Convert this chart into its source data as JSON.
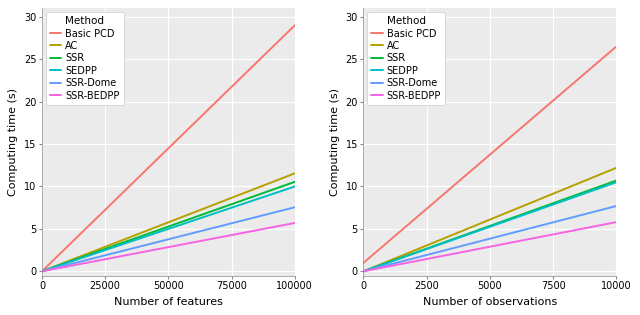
{
  "plot1": {
    "xlabel": "Number of features",
    "ylabel": "Computing time (s)",
    "xlim": [
      0,
      100000
    ],
    "ylim": [
      -0.5,
      31
    ],
    "yticks": [
      0,
      5,
      10,
      15,
      20,
      25,
      30
    ],
    "xticks": [
      0,
      25000,
      50000,
      75000,
      100000
    ],
    "xtick_labels": [
      "0",
      "25000",
      "50000",
      "75000",
      "100000"
    ],
    "series": [
      {
        "name": "Basic PCD",
        "color": "#F8766D",
        "slope": 0.00029,
        "intercept": 0.0
      },
      {
        "name": "AC",
        "color": "#B5A000",
        "slope": 0.0001155,
        "intercept": 0.0
      },
      {
        "name": "SSR",
        "color": "#00BA38",
        "slope": 0.0001055,
        "intercept": 0.0
      },
      {
        "name": "SEDPP",
        "color": "#00BFC4",
        "slope": 0.0001,
        "intercept": 0.0
      },
      {
        "name": "SSR-Dome",
        "color": "#619CFF",
        "slope": 7.55e-05,
        "intercept": 0.0
      },
      {
        "name": "SSR-BEDPP",
        "color": "#F564E3",
        "slope": 5.7e-05,
        "intercept": 0.0
      }
    ]
  },
  "plot2": {
    "xlabel": "Number of observations",
    "ylabel": "Computing time (s)",
    "xlim": [
      0,
      10000
    ],
    "ylim": [
      -0.5,
      31
    ],
    "yticks": [
      0,
      5,
      10,
      15,
      20,
      25,
      30
    ],
    "xticks": [
      0,
      2500,
      5000,
      7500,
      10000
    ],
    "xtick_labels": [
      "0",
      "2500",
      "5000",
      "7500",
      "10000"
    ],
    "series": [
      {
        "name": "Basic PCD",
        "color": "#F8766D",
        "slope": 0.00255,
        "intercept": 1.0
      },
      {
        "name": "AC",
        "color": "#B5A000",
        "slope": 0.00122,
        "intercept": 0.0
      },
      {
        "name": "SSR",
        "color": "#00BA38",
        "slope": 0.00107,
        "intercept": 0.0
      },
      {
        "name": "SEDPP",
        "color": "#00BFC4",
        "slope": 0.00105,
        "intercept": 0.0
      },
      {
        "name": "SSR-Dome",
        "color": "#619CFF",
        "slope": 0.00077,
        "intercept": 0.0
      },
      {
        "name": "SSR-BEDPP",
        "color": "#F564E3",
        "slope": 0.00058,
        "intercept": 0.0
      }
    ]
  },
  "legend_title": "Method",
  "panel_bg": "#EBEBEB",
  "grid_color": "white",
  "linewidth": 1.4,
  "legend_fontsize": 7.0,
  "legend_title_fontsize": 7.5,
  "axis_label_fontsize": 8.0,
  "tick_fontsize": 7.0
}
